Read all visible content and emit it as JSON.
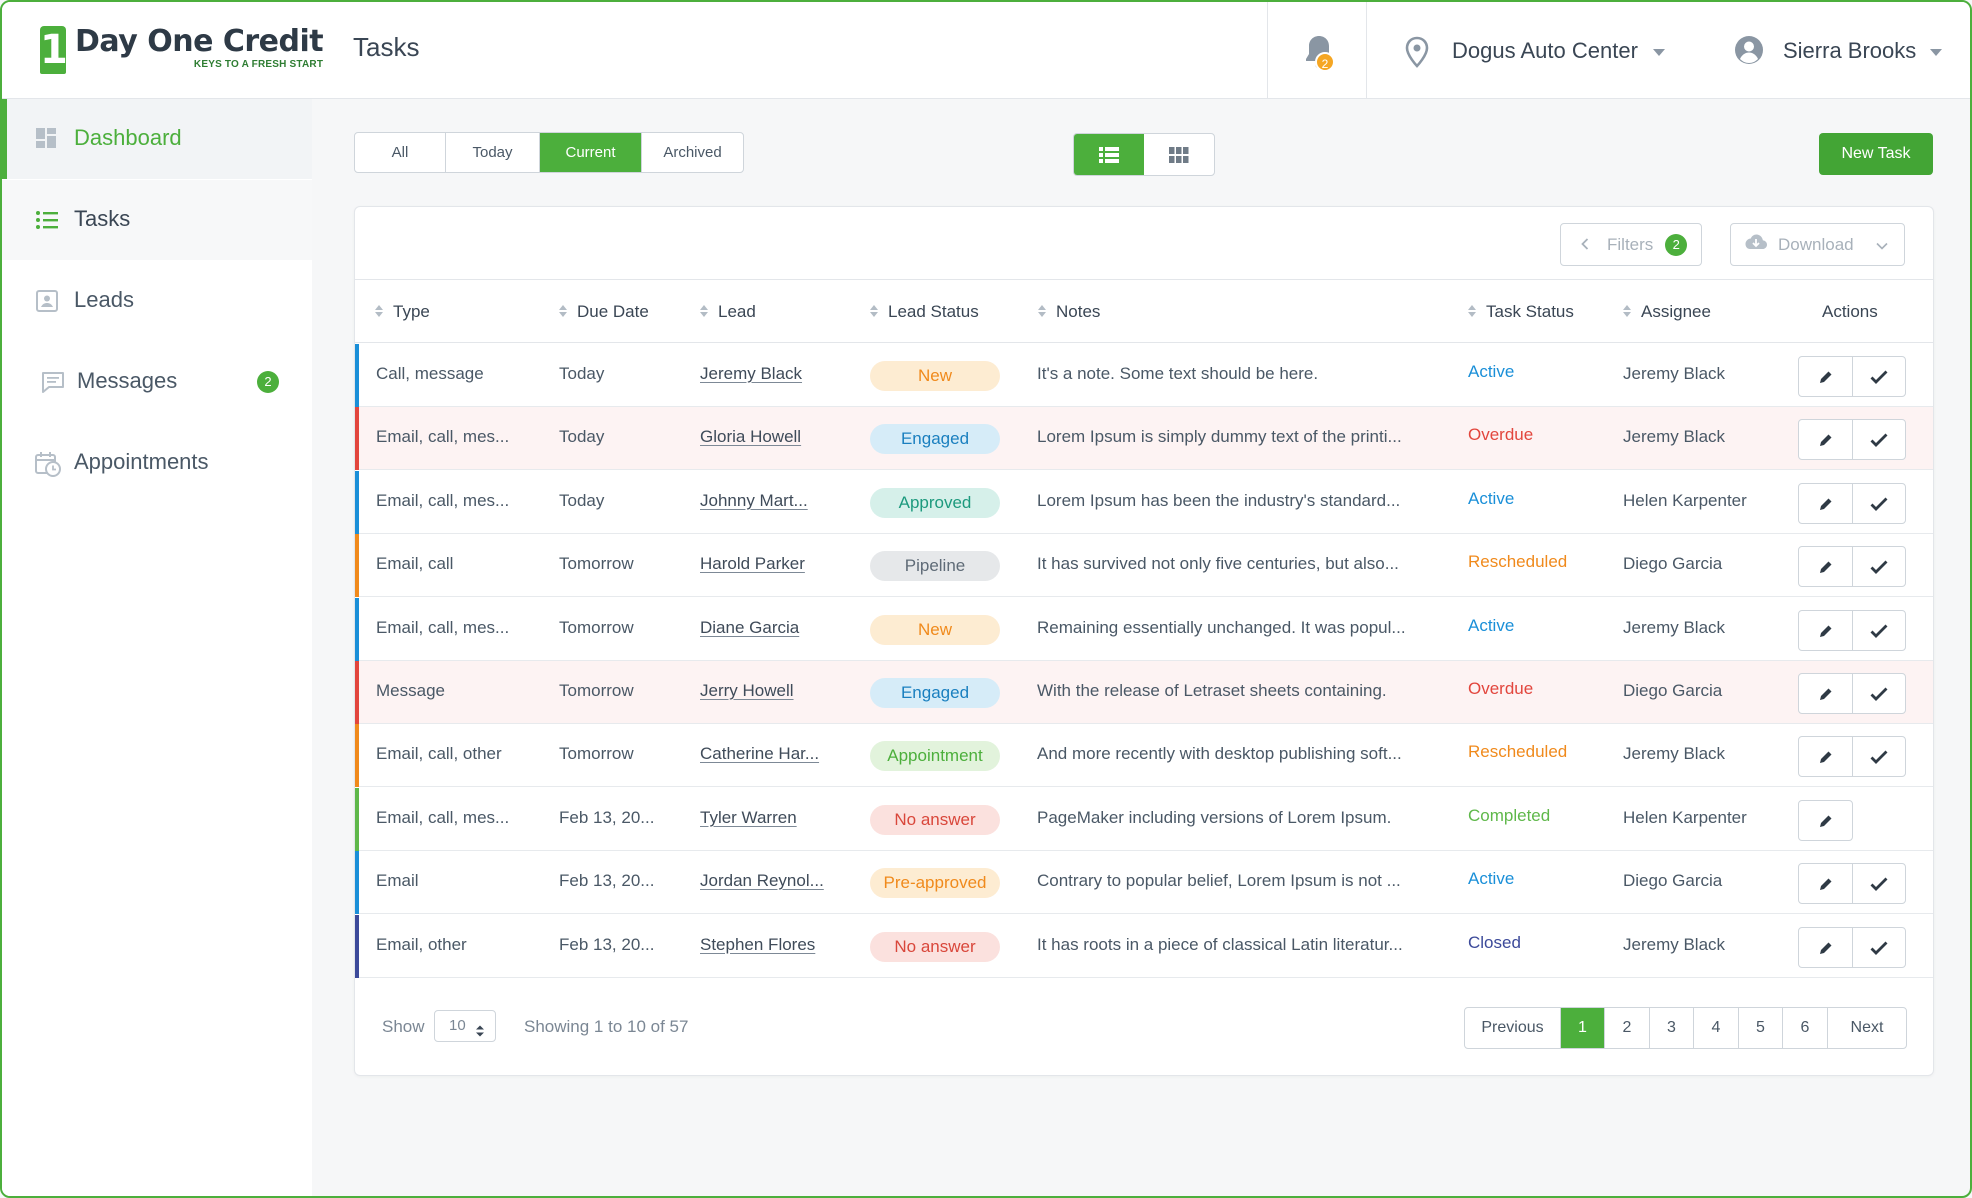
{
  "brand": {
    "name": "Day One Credit",
    "tagline": "KEYS TO A FRESH START",
    "mark": "1"
  },
  "header": {
    "title": "Tasks",
    "notifications_count": "2",
    "location": "Dogus Auto Center",
    "user": "Sierra Brooks"
  },
  "sidebar": {
    "items": [
      {
        "label": "Dashboard",
        "icon": "dashboard-icon"
      },
      {
        "label": "Tasks",
        "icon": "list-icon"
      },
      {
        "label": "Leads",
        "icon": "contact-card-icon"
      },
      {
        "label": "Messages",
        "icon": "chat-icon",
        "badge": "2"
      },
      {
        "label": "Appointments",
        "icon": "calendar-clock-icon"
      }
    ]
  },
  "toolbar": {
    "tabs": [
      "All",
      "Today",
      "Current",
      "Archived"
    ],
    "active_tab": "Current",
    "new_task_label": "New Task"
  },
  "table_tools": {
    "filters_label": "Filters",
    "filters_count": "2",
    "download_label": "Download"
  },
  "columns": [
    "Type",
    "Due Date",
    "Lead",
    "Lead Status",
    "Notes",
    "Task Status",
    "Assignee",
    "Actions"
  ],
  "rows": [
    {
      "type": "Call, message",
      "due": "Today",
      "lead": "Jeremy Black",
      "lead_status": "New",
      "notes": "It's a note. Some text should be here.",
      "task_status": "Active",
      "assignee": "Jeremy Black"
    },
    {
      "type": "Email, call, mes...",
      "due": "Today",
      "lead": "Gloria Howell",
      "lead_status": "Engaged",
      "notes": "Lorem Ipsum is simply dummy text of the printi...",
      "task_status": "Overdue",
      "assignee": "Jeremy Black"
    },
    {
      "type": "Email, call, mes...",
      "due": "Today",
      "lead": "Johnny Mart...",
      "lead_status": "Approved",
      "notes": "Lorem Ipsum has been the industry's standard...",
      "task_status": "Active",
      "assignee": "Helen Karpenter"
    },
    {
      "type": "Email, call",
      "due": "Tomorrow",
      "lead": "Harold Parker",
      "lead_status": "Pipeline",
      "notes": "It has survived not only five centuries, but also...",
      "task_status": "Rescheduled",
      "assignee": "Diego Garcia"
    },
    {
      "type": "Email, call, mes...",
      "due": "Tomorrow",
      "lead": "Diane Garcia",
      "lead_status": "New",
      "notes": "Remaining essentially unchanged. It was  popul...",
      "task_status": "Active",
      "assignee": "Jeremy Black"
    },
    {
      "type": "Message",
      "due": "Tomorrow",
      "lead": "Jerry Howell",
      "lead_status": "Engaged",
      "notes": "With the release of Letraset sheets containing.",
      "task_status": "Overdue",
      "assignee": "Diego Garcia"
    },
    {
      "type": "Email, call, other",
      "due": "Tomorrow",
      "lead": "Catherine Har...",
      "lead_status": "Appointment",
      "notes": "And more recently with desktop publishing soft...",
      "task_status": "Rescheduled",
      "assignee": "Jeremy Black"
    },
    {
      "type": "Email, call, mes...",
      "due": "Feb 13, 20...",
      "lead": "Tyler Warren",
      "lead_status": "No answer",
      "notes": "PageMaker including versions of Lorem Ipsum.",
      "task_status": "Completed",
      "assignee": "Helen Karpenter"
    },
    {
      "type": "Email",
      "due": "Feb 13, 20...",
      "lead": "Jordan Reynol...",
      "lead_status": "Pre-approved",
      "notes": "Contrary to popular belief, Lorem Ipsum is not ...",
      "task_status": "Active",
      "assignee": "Diego Garcia"
    },
    {
      "type": "Email, other",
      "due": "Feb 13, 20...",
      "lead": "Stephen Flores",
      "lead_status": "No answer",
      "notes": "It has roots in a piece of classical Latin literatur...",
      "task_status": "Closed",
      "assignee": "Jeremy Black"
    }
  ],
  "status_colors": {
    "Active": "#1a8fd8",
    "Overdue": "#e2463d",
    "Rescheduled": "#f08a1c",
    "Completed": "#5fb84a",
    "Closed": "#3c4a9a"
  },
  "lead_status_styles": {
    "New": {
      "bg": "#fdecd2",
      "fg": "#f08a1c"
    },
    "Engaged": {
      "bg": "#d6ecf8",
      "fg": "#1a7fbf"
    },
    "Approved": {
      "bg": "#d6f0ea",
      "fg": "#1d9a7e"
    },
    "Pipeline": {
      "bg": "#e6e8ea",
      "fg": "#5f6b77"
    },
    "Appointment": {
      "bg": "#e2f3dc",
      "fg": "#4caf3c"
    },
    "No answer": {
      "bg": "#fbe1de",
      "fg": "#d9473b"
    },
    "Pre-approved": {
      "bg": "#fdecd2",
      "fg": "#f08a1c"
    }
  },
  "footer": {
    "show_label": "Show",
    "page_size": "10",
    "showing_text": "Showing 1 to 10 of 57",
    "pages": [
      "Previous",
      "1",
      "2",
      "3",
      "4",
      "5",
      "6",
      "Next"
    ],
    "current_page": "1"
  }
}
